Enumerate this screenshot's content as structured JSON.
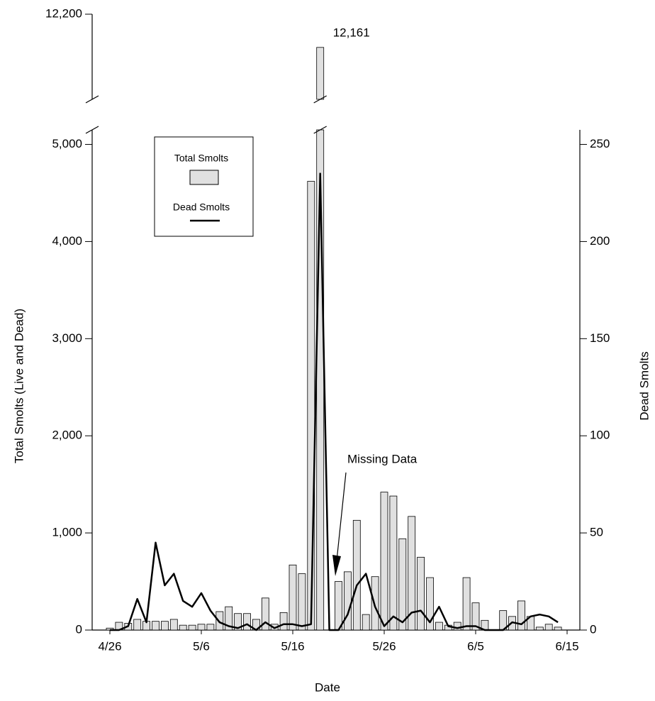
{
  "chart_data": {
    "type": "bar",
    "x_label": "Date",
    "y_label": "Total Smolts (Live and Dead)",
    "y2_label": "Dead Smolts",
    "categories": [
      "4/26",
      null,
      null,
      null,
      null,
      null,
      null,
      null,
      null,
      null,
      "5/6",
      null,
      null,
      null,
      null,
      null,
      null,
      null,
      null,
      null,
      "5/16",
      null,
      null,
      null,
      null,
      null,
      null,
      null,
      null,
      null,
      "5/26",
      null,
      null,
      null,
      null,
      null,
      null,
      null,
      null,
      null,
      "6/5",
      null,
      null,
      null,
      null,
      null,
      null,
      null,
      null,
      null,
      "6/15"
    ],
    "series": [
      {
        "name": "Total Smolts",
        "color": "#e0e0e0",
        "values": [
          20,
          80,
          70,
          110,
          90,
          90,
          90,
          110,
          50,
          50,
          60,
          60,
          190,
          240,
          170,
          170,
          110,
          330,
          60,
          180,
          670,
          580,
          4620,
          12161,
          null,
          500,
          600,
          1130,
          160,
          550,
          1420,
          1380,
          940,
          1170,
          750,
          540,
          80,
          50,
          80,
          540,
          280,
          100,
          0,
          200,
          140,
          300,
          140,
          30,
          60,
          30,
          null
        ],
        "value_labels": [
          null,
          null,
          null,
          null,
          null,
          null,
          null,
          null,
          null,
          null,
          null,
          null,
          null,
          null,
          null,
          null,
          null,
          null,
          null,
          null,
          null,
          null,
          null,
          "12,161",
          null,
          null,
          null,
          null,
          null,
          null,
          null,
          null,
          null,
          null,
          null,
          null,
          null,
          null,
          null,
          null,
          null,
          null,
          null,
          null,
          null,
          null,
          null,
          null,
          null,
          null,
          null
        ]
      },
      {
        "name": "Dead Smolts",
        "type": "line",
        "axis": "y2",
        "color": "#000000",
        "values": [
          0,
          0,
          2,
          16,
          4,
          45,
          23,
          29,
          15,
          12,
          19,
          10,
          4,
          2,
          1,
          3,
          0,
          4,
          1,
          3,
          3,
          2,
          3,
          235,
          0,
          0,
          8,
          23,
          29,
          12,
          2,
          7,
          4,
          9,
          10,
          4,
          12,
          2,
          1,
          2,
          2,
          0,
          0,
          0,
          4,
          3,
          7,
          8,
          7,
          4,
          null
        ]
      }
    ],
    "ylim": [
      0,
      5150
    ],
    "yticks": [
      0,
      {
        "value": 1000,
        "label": "1,000"
      },
      {
        "value": 2000,
        "label": "2,000"
      },
      {
        "value": 3000,
        "label": "3,000"
      },
      {
        "value": 4000,
        "label": "4,000"
      },
      {
        "value": 5000,
        "label": "5,000"
      }
    ],
    "ylim_break": [
      12100,
      12200
    ],
    "yticks_break": [
      {
        "value": 12200,
        "label": "12,200"
      }
    ],
    "y2lim": [
      0,
      257.5
    ],
    "y2ticks": [
      0,
      50,
      100,
      150,
      200,
      250
    ],
    "annotation": "Missing Data",
    "legend": "upper left"
  }
}
